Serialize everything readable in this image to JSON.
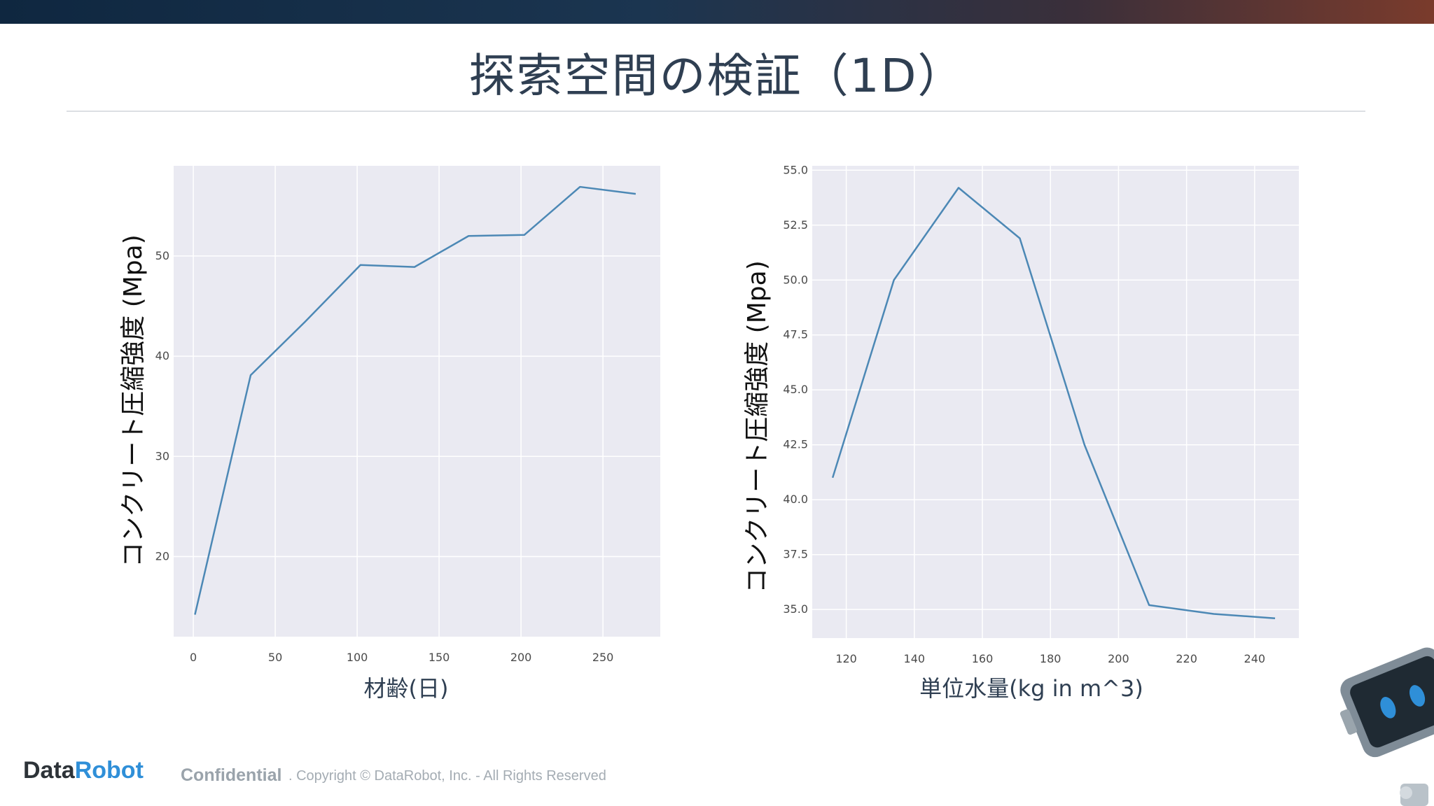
{
  "slide": {
    "title": "探索空間の検証（1D）",
    "footer": {
      "logo_part1": "Data",
      "logo_part2": "Robot",
      "confidential": "Confidential",
      "copyright": ". Copyright © DataRobot, Inc. - All Rights Reserved"
    }
  },
  "colors": {
    "line": "#4c88b5",
    "plot_bg": "#eaeaf2",
    "grid": "#ffffff",
    "title": "#2f3f52",
    "logo_blue": "#2f8fd8"
  },
  "chart_data": [
    {
      "type": "line",
      "xlabel": "材齢(日)",
      "ylabel": "コンクリート圧縮強度 (Mpa)",
      "x": [
        1,
        35,
        68,
        102,
        135,
        168,
        202,
        236,
        270
      ],
      "y": [
        14.2,
        38.1,
        43.4,
        49.1,
        48.9,
        52.0,
        52.1,
        56.9,
        56.2
      ],
      "xlim": [
        -12,
        285
      ],
      "ylim": [
        12,
        59
      ],
      "xticks": [
        0,
        50,
        100,
        150,
        200,
        250
      ],
      "yticks": [
        20,
        30,
        40,
        50
      ],
      "ytick_format": "int",
      "grid": true
    },
    {
      "type": "line",
      "xlabel": "単位水量(kg in m^3)",
      "ylabel": "コンクリート圧縮強度 (Mpa)",
      "x": [
        116,
        134,
        153,
        171,
        190,
        209,
        228,
        246
      ],
      "y": [
        41.0,
        50.0,
        54.2,
        51.9,
        42.5,
        35.2,
        34.8,
        34.6
      ],
      "xlim": [
        110,
        253
      ],
      "ylim": [
        33.7,
        55.2
      ],
      "xticks": [
        120,
        140,
        160,
        180,
        200,
        220,
        240
      ],
      "yticks": [
        35.0,
        37.5,
        40.0,
        42.5,
        45.0,
        47.5,
        50.0,
        52.5,
        55.0
      ],
      "ytick_format": "1dp",
      "grid": true
    }
  ]
}
